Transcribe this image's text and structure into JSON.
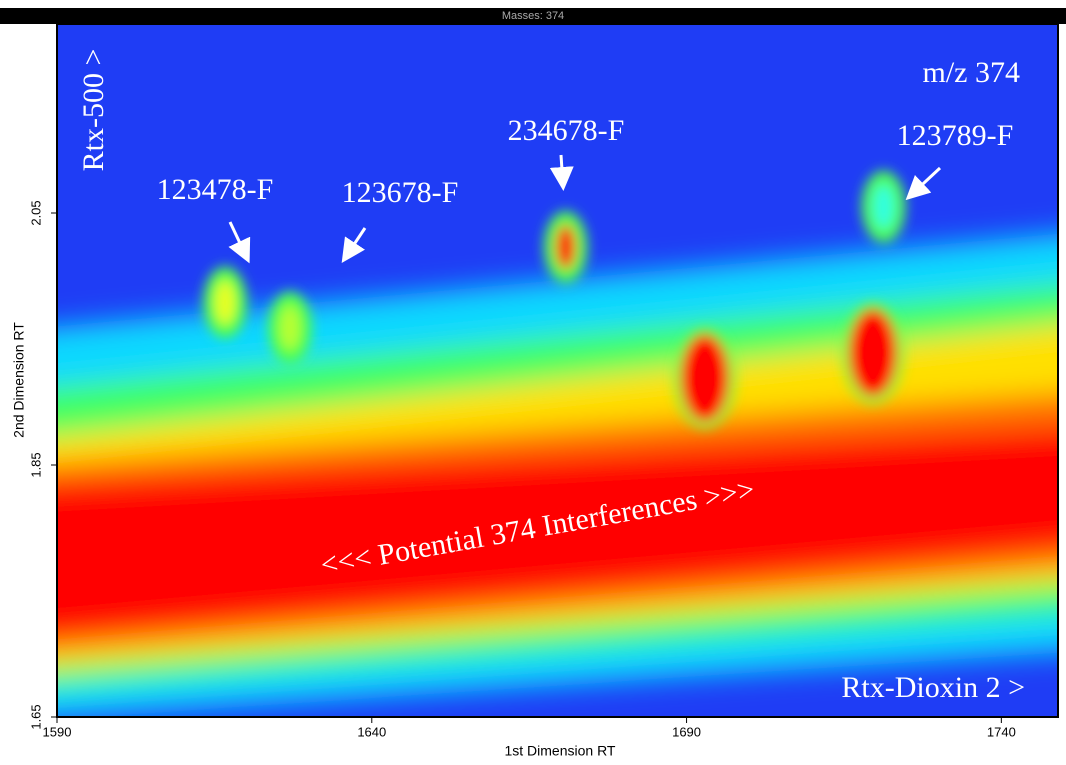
{
  "chart_data": {
    "type": "contour",
    "title": "Masses: 374",
    "x_label": "1st Dimension RT",
    "y_label": "2nd Dimension RT",
    "xlim": [
      1590,
      1749
    ],
    "xticks": [
      1590,
      1640,
      1690,
      1740
    ],
    "ylim": [
      1.65,
      2.2
    ],
    "yticks": [
      1.65,
      1.85,
      2.05
    ],
    "annotations": {
      "mass": "m/z 374",
      "column_2": "Rtx-500 >",
      "column_1": "Rtx-Dioxin 2 >",
      "band": "<<< Potential 374 Interferences >>>"
    },
    "peaks": [
      {
        "label": "123478-F",
        "x": 1616.7,
        "y": 1.979,
        "color": "#e8ff20"
      },
      {
        "label": "123678-F",
        "x": 1627,
        "y": 1.959,
        "color": "#b8ff30"
      },
      {
        "label": "234678-F",
        "x": 1670.8,
        "y": 2.023,
        "color": "#ff2000"
      },
      {
        "label": "123789-F",
        "x": 1721.3,
        "y": 2.055,
        "color": "#30ffe0"
      },
      {
        "x": 1692.9,
        "y": 1.919,
        "color": "#ff0000"
      },
      {
        "x": 1719.6,
        "y": 1.939,
        "color": "#ff0000"
      }
    ]
  }
}
